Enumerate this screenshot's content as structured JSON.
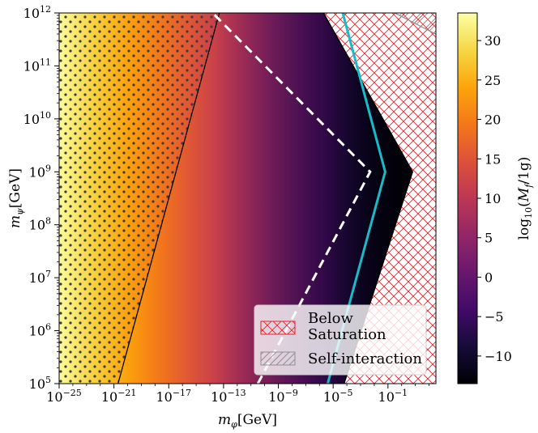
{
  "chart_data": {
    "type": "heatmap",
    "title": "",
    "xlabel": "m_φ[GeV]",
    "ylabel": "m_ψ[GeV]",
    "x_scale": "log",
    "y_scale": "log",
    "xlim_log10": [
      -25,
      2.5
    ],
    "ylim_log10": [
      5,
      12
    ],
    "x_ticks_log10": [
      -25,
      -21,
      -17,
      -13,
      -9,
      -5,
      -1
    ],
    "y_ticks_log10": [
      5,
      6,
      7,
      8,
      9,
      10,
      11,
      12
    ],
    "x_tick_labels": [
      "10^-25",
      "10^-21",
      "10^-17",
      "10^-13",
      "10^-9",
      "10^-5",
      "10^-1"
    ],
    "y_tick_labels": [
      "10^5",
      "10^6",
      "10^7",
      "10^8",
      "10^9",
      "10^10",
      "10^11",
      "10^12"
    ],
    "colorbar": {
      "label": "log10(M_f/1g)",
      "range": [
        -13.5,
        33.5
      ],
      "ticks": [
        30,
        25,
        20,
        15,
        10,
        5,
        0,
        -5,
        -10
      ],
      "tick_labels": [
        "30",
        "25",
        "20",
        "15",
        "10",
        "5",
        "0",
        "−5",
        "−10"
      ],
      "colormap": "inferno"
    },
    "color_model": {
      "value_at_log_x_min": 33,
      "slope_per_decade_x": -1.75,
      "dark_edge_value": -13
    },
    "boundaries": {
      "dotted_region_edge": [
        [
          -20.7,
          5
        ],
        [
          -13.3,
          12
        ]
      ],
      "white_dashed": [
        [
          -10.5,
          5
        ],
        [
          -2.3,
          9
        ],
        [
          -13.8,
          12
        ]
      ],
      "cyan_line": [
        [
          -5.4,
          5
        ],
        [
          -1.2,
          9
        ],
        [
          -4.3,
          12
        ]
      ],
      "saturation_edge": [
        [
          -4.2,
          5
        ],
        [
          0.8,
          9
        ],
        [
          -5.7,
          12
        ]
      ],
      "self_interaction_edge": [
        [
          -0.5,
          12
        ],
        [
          2.5,
          11.6
        ]
      ]
    },
    "legend": {
      "position": "lower-right",
      "entries": [
        {
          "label_line1": "Below",
          "label_line2": "Saturation",
          "hatch": "crosshatch",
          "color": "#e8222a"
        },
        {
          "label_line1": "Self-interaction",
          "label_line2": "",
          "hatch": "diagonal",
          "color": "#8f8f8f"
        }
      ]
    }
  },
  "colors": {
    "cyan": "#17bcc6",
    "dashed": "#ffffff",
    "saturation_hatch": "#e8222a",
    "self_interaction_hatch": "#8f8f8f"
  }
}
